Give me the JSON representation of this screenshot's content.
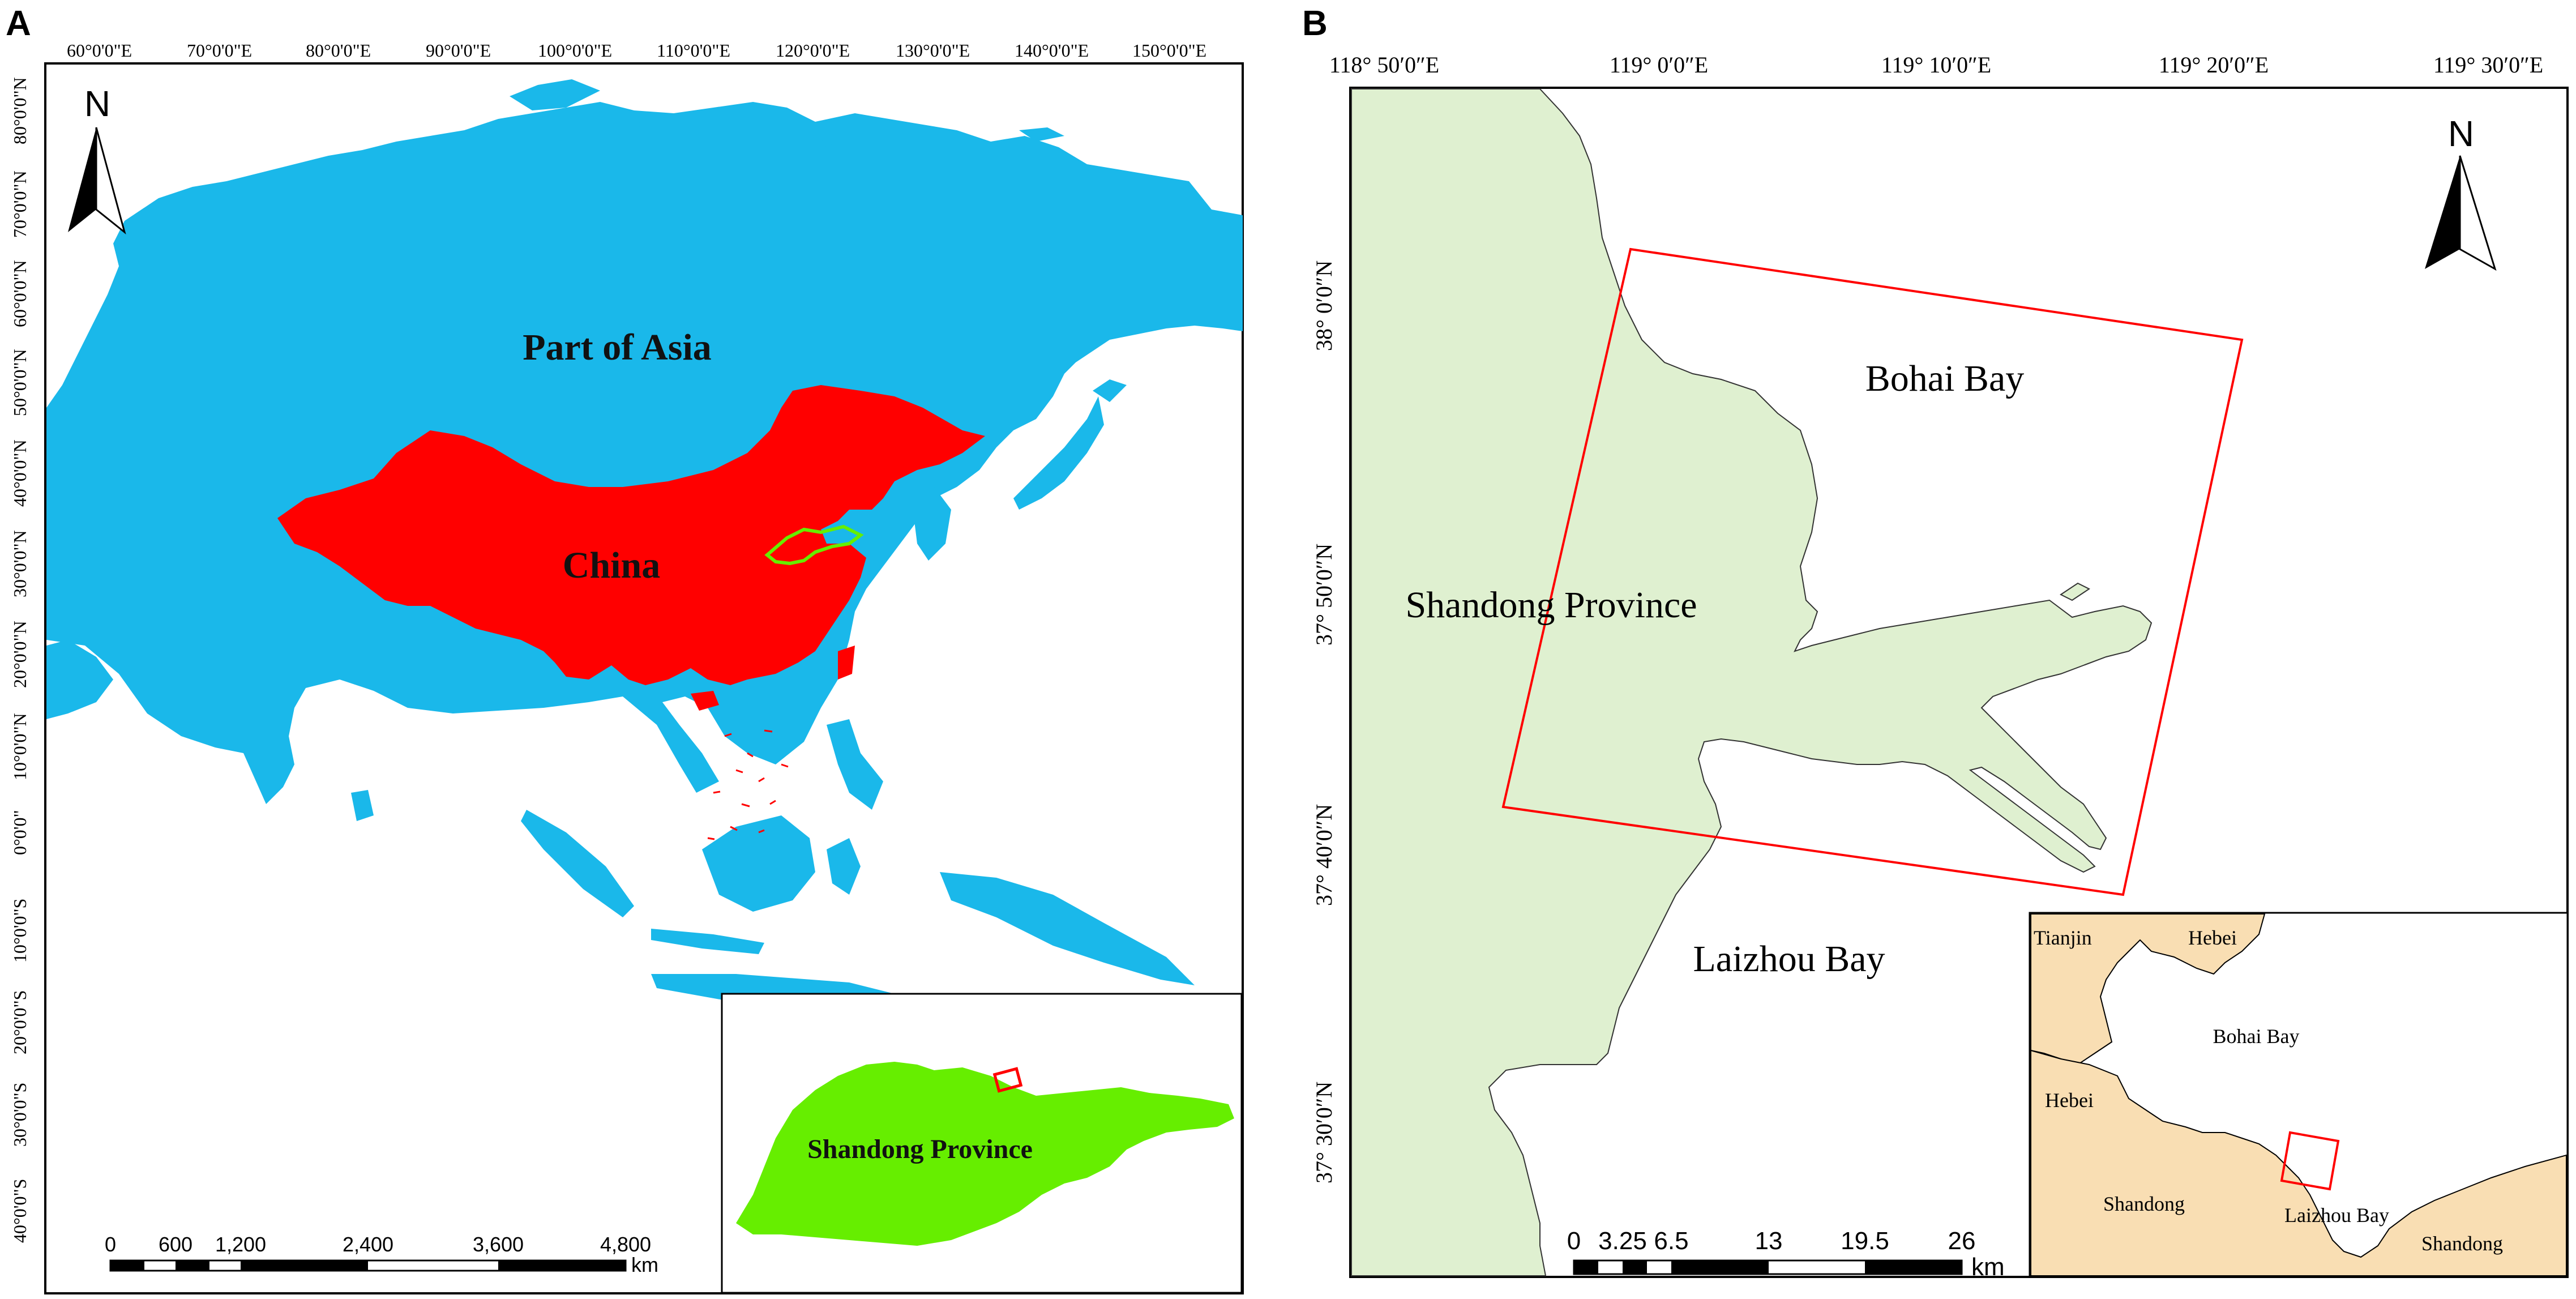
{
  "panel_a": {
    "letter": "A",
    "lon_labels": [
      "60°0'0\"E",
      "70°0'0\"E",
      "80°0'0\"E",
      "90°0'0\"E",
      "100°0'0\"E",
      "110°0'0\"E",
      "120°0'0\"E",
      "130°0'0\"E",
      "140°0'0\"E",
      "150°0'0\"E"
    ],
    "lat_labels": [
      "80°0'0\"N",
      "70°0'0\"N",
      "60°0'0\"N",
      "50°0'0\"N",
      "40°0'0\"N",
      "30°0'0\"N",
      "20°0'0\"N",
      "10°0'0\"N",
      "0°0'0\"",
      "10°0'0\"S",
      "20°0'0\"S",
      "30°0'0\"S",
      "40°0'0\"S"
    ],
    "labels": {
      "asia": "Part of Asia",
      "china": "China",
      "inset": "Shandong Province"
    },
    "north": "N",
    "scale": {
      "ticks": [
        "0",
        "600",
        "1,200",
        "2,400",
        "3,600",
        "4,800"
      ],
      "unit": "km"
    },
    "colors": {
      "asia": "#1ab8ea",
      "china": "#ff0000",
      "shandong": "#66ee00"
    }
  },
  "panel_b": {
    "letter": "B",
    "lon_labels": [
      "118°  50′0″E",
      "119°  0′0″E",
      "119°  10′0″E",
      "119°  20′0″E",
      "119°  30′0″E"
    ],
    "lat_labels": [
      "38°  0′0″N",
      "37°  50′0″N",
      "37°  40′0″N",
      "37°  30′0″N"
    ],
    "labels": {
      "bohai": "Bohai Bay",
      "shandong": "Shandong Province",
      "laizhou": "Laizhou Bay"
    },
    "north": "N",
    "scale": {
      "ticks": [
        "0",
        "3.25",
        "6.5",
        "13",
        "19.5",
        "26"
      ],
      "unit": "km"
    },
    "inset_labels": {
      "tianjin": "Tianjin",
      "hebei_top": "Hebei",
      "bohai": "Bohai Bay",
      "hebei_left": "Hebei",
      "shandong_left": "Shandong",
      "laizhou": "Laizhou Bay",
      "shandong_right": "Shandong"
    },
    "colors": {
      "land": "#dff0d0",
      "inset_land": "#f9deb3",
      "study_box": "#ff0000"
    }
  }
}
